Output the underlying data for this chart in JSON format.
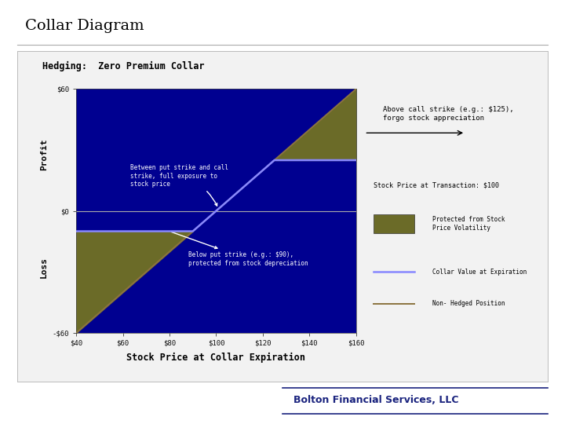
{
  "title": "Collar Diagram",
  "subtitle": "Hedging:  Zero Premium Collar",
  "xlabel": "Stock Price at Collar Expiration",
  "ylabel_profit": "Profit",
  "ylabel_loss": "Loss",
  "xticks": [
    40,
    60,
    80,
    100,
    120,
    140,
    160
  ],
  "xtick_labels": [
    "$40",
    "$60",
    "$80",
    "$100",
    "$120",
    "$140",
    "$160"
  ],
  "ytick_vals": [
    60,
    0,
    -60
  ],
  "ytick_labels": [
    "$60",
    "$0",
    "-$60"
  ],
  "xmin": 40,
  "xmax": 160,
  "ymin": -60,
  "ymax": 60,
  "put_strike": 90,
  "call_strike": 125,
  "transaction_price": 100,
  "bg_color_main": "#000090",
  "bg_color_olive": "#6B6B28",
  "non_hedged_color": "#8B7340",
  "page_bg": "#FFFFFF",
  "title_color": "#000000",
  "bolton_color": "#1a237e",
  "annotation1_text": "Between put strike and call\nstrike, full exposure to\nstock price",
  "annotation2_text": "Below put strike (e.g.: $90),\nprotected from stock depreciation",
  "annotation3_text": "Above call strike (e.g.: $125),\nforgo stock appreciation",
  "ref_line_text": "Stock Price at Transaction: $100",
  "legend_protected": "Protected from Stock\nPrice Volatility",
  "legend_collar": "Collar Value at Expiration",
  "legend_nonhedged": "Non- Hedged Position"
}
